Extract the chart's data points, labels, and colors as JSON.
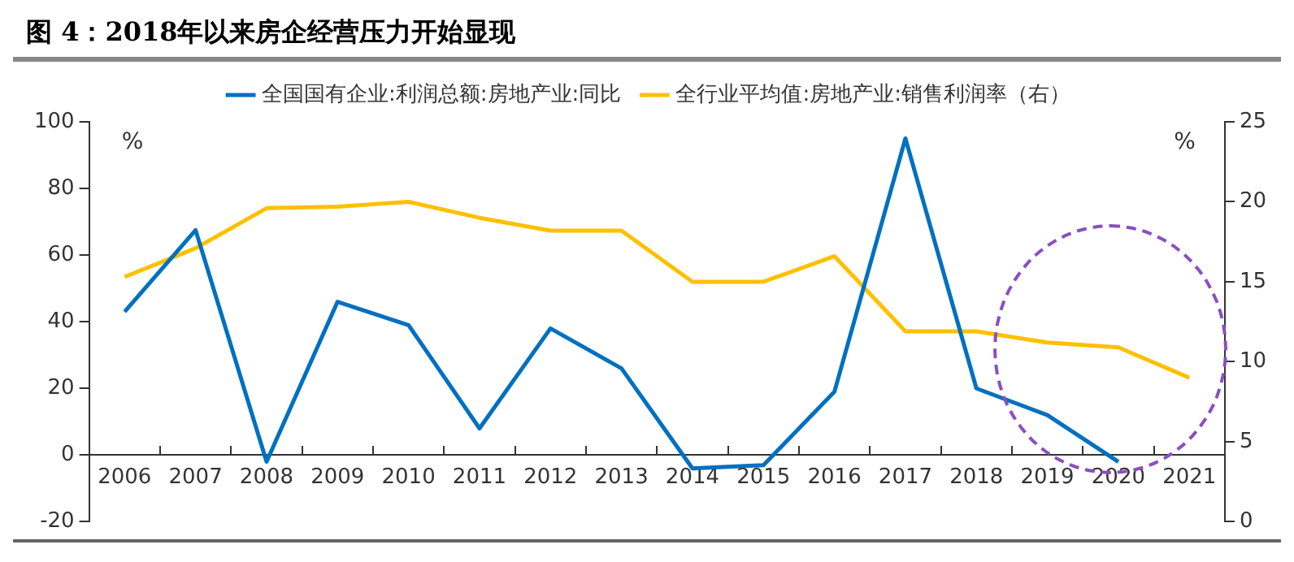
{
  "chart_data": {
    "type": "line",
    "title": "图 4：2018年以来房企经营压力开始显现",
    "categories": [
      "2006",
      "2007",
      "2008",
      "2009",
      "2010",
      "2011",
      "2012",
      "2013",
      "2014",
      "2015",
      "2016",
      "2017",
      "2018",
      "2019",
      "2020",
      "2021"
    ],
    "series": [
      {
        "name": "全国国有企业:利润总额:房地产业:同比",
        "color": "#0070c0",
        "values": [
          43,
          67.5,
          -2,
          46,
          39,
          8,
          38,
          26,
          -4,
          -3,
          19,
          95,
          20,
          12,
          -2,
          null
        ]
      },
      {
        "name": "全行业平均值:房地产业:销售利润率（右）",
        "color": "#ffc000",
        "axis": "y2",
        "values": [
          15.3,
          17.1,
          19.6,
          19.7,
          20,
          19,
          18.2,
          18.2,
          15,
          15,
          16.6,
          11.9,
          11.9,
          11.2,
          10.9,
          9
        ]
      }
    ],
    "ylabel": "%",
    "y2label": "%",
    "ylim": [
      -20,
      100
    ],
    "yticks": [
      -20,
      0,
      20,
      40,
      60,
      80,
      100
    ],
    "y2lim": [
      0,
      25
    ],
    "y2ticks": [
      0,
      5,
      10,
      15,
      20,
      25
    ],
    "grid": false,
    "legend": "top",
    "marker": "none",
    "line_style": "solid"
  }
}
